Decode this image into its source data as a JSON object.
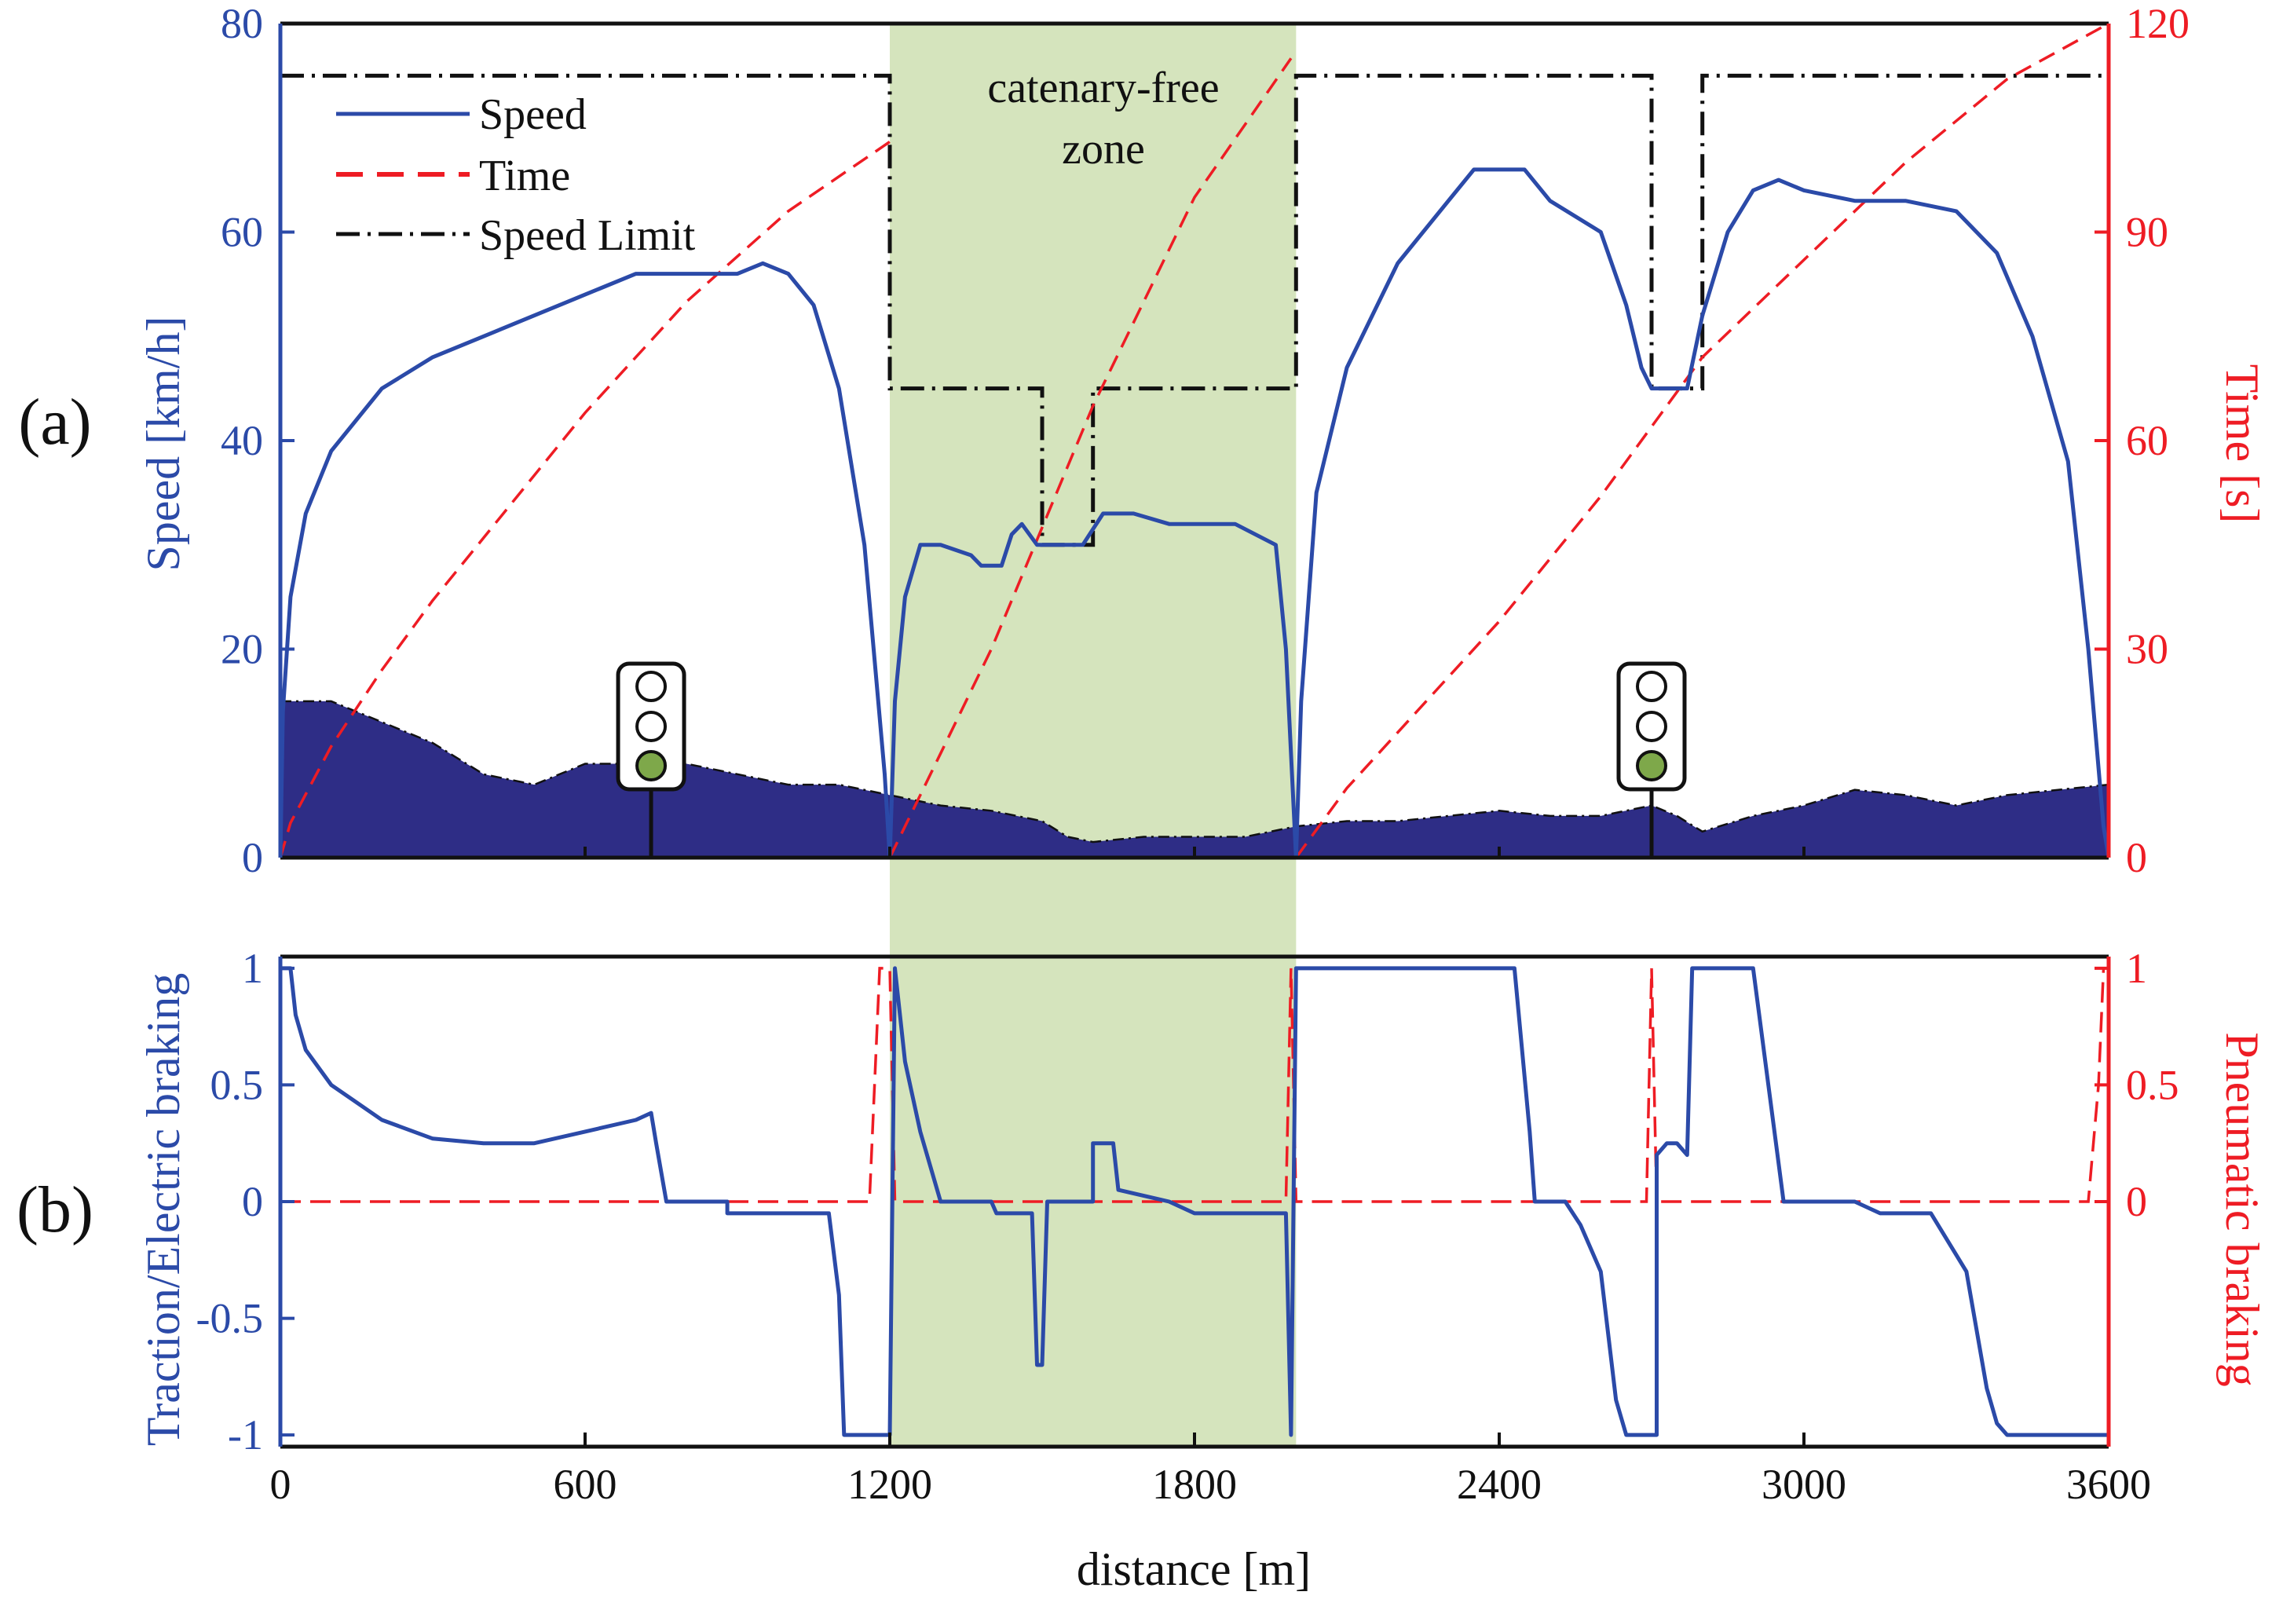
{
  "colors": {
    "speed": "#2b4aa8",
    "time": "#ee1c24",
    "limit": "#111111",
    "altitude": "#2e2d86",
    "zone": "#d5e4bd",
    "axis": "#111111",
    "signal_green": "#7ea84a",
    "left_axis_text": "#2b4aa8",
    "right_axis_text": "#ee1c24"
  },
  "chart_data": [
    {
      "type": "line",
      "panel_label": "(a)",
      "xlim": [
        0,
        3600
      ],
      "ylim_left": [
        0,
        80
      ],
      "ylim_right": [
        0,
        120
      ],
      "yticks_left": [
        "0",
        "20",
        "40",
        "60",
        "80"
      ],
      "yticks_right": [
        "0",
        "30",
        "60",
        "90",
        "120"
      ],
      "ylabel_left": "Speed [km/h]",
      "ylabel_right": "Time [s]",
      "annotation": {
        "line1": "catenary-free",
        "line2": "zone"
      },
      "catenary_free_zone": [
        1200,
        2000
      ],
      "legend": [
        "Speed",
        "Time",
        "Speed Limit"
      ],
      "signals": [
        {
          "x": 730,
          "aspect": "green"
        },
        {
          "x": 2700,
          "aspect": "green"
        }
      ],
      "series": [
        {
          "name": "Speed",
          "axis": "left",
          "points": [
            [
              0,
              0
            ],
            [
              5,
              14
            ],
            [
              20,
              25
            ],
            [
              50,
              33
            ],
            [
              100,
              39
            ],
            [
              200,
              45
            ],
            [
              300,
              48
            ],
            [
              400,
              50
            ],
            [
              500,
              52
            ],
            [
              600,
              54
            ],
            [
              700,
              56
            ],
            [
              800,
              56
            ],
            [
              900,
              56
            ],
            [
              950,
              57
            ],
            [
              1000,
              56
            ],
            [
              1050,
              53
            ],
            [
              1100,
              45
            ],
            [
              1150,
              30
            ],
            [
              1190,
              8
            ],
            [
              1200,
              0
            ],
            [
              1210,
              15
            ],
            [
              1230,
              25
            ],
            [
              1260,
              30
            ],
            [
              1300,
              30
            ],
            [
              1360,
              29
            ],
            [
              1380,
              28
            ],
            [
              1420,
              28
            ],
            [
              1440,
              31
            ],
            [
              1460,
              32
            ],
            [
              1490,
              30
            ],
            [
              1580,
              30
            ],
            [
              1620,
              33
            ],
            [
              1680,
              33
            ],
            [
              1750,
              32
            ],
            [
              1800,
              32
            ],
            [
              1880,
              32
            ],
            [
              1960,
              30
            ],
            [
              1980,
              20
            ],
            [
              2000,
              0
            ],
            [
              2010,
              15
            ],
            [
              2040,
              35
            ],
            [
              2100,
              47
            ],
            [
              2200,
              57
            ],
            [
              2300,
              63
            ],
            [
              2350,
              66
            ],
            [
              2400,
              66
            ],
            [
              2450,
              66
            ],
            [
              2500,
              63
            ],
            [
              2600,
              60
            ],
            [
              2650,
              53
            ],
            [
              2680,
              47
            ],
            [
              2700,
              45
            ],
            [
              2770,
              45
            ],
            [
              2800,
              52
            ],
            [
              2850,
              60
            ],
            [
              2900,
              64
            ],
            [
              2950,
              65
            ],
            [
              3000,
              64
            ],
            [
              3100,
              63
            ],
            [
              3200,
              63
            ],
            [
              3300,
              62
            ],
            [
              3380,
              58
            ],
            [
              3450,
              50
            ],
            [
              3520,
              38
            ],
            [
              3560,
              20
            ],
            [
              3590,
              3
            ],
            [
              3600,
              0
            ]
          ]
        },
        {
          "name": "Time",
          "axis": "right",
          "segments": [
            [
              [
                0,
                0
              ],
              [
                20,
                5
              ],
              [
                100,
                16
              ],
              [
                200,
                27
              ],
              [
                300,
                37
              ],
              [
                400,
                46
              ],
              [
                600,
                64
              ],
              [
                800,
                80
              ],
              [
                1000,
                93
              ],
              [
                1200,
                103
              ]
            ],
            [
              [
                1200,
                0
              ],
              [
                1300,
                15
              ],
              [
                1400,
                30
              ],
              [
                1600,
                65
              ],
              [
                1800,
                95
              ],
              [
                1990,
                115
              ]
            ],
            [
              [
                2000,
                0
              ],
              [
                2100,
                10
              ],
              [
                2200,
                18
              ],
              [
                2400,
                34
              ],
              [
                2600,
                52
              ],
              [
                2800,
                72
              ],
              [
                3000,
                86
              ],
              [
                3200,
                100
              ],
              [
                3400,
                112
              ],
              [
                3600,
                120
              ]
            ]
          ]
        },
        {
          "name": "Speed Limit",
          "axis": "left",
          "points": [
            [
              0,
              75
            ],
            [
              1200,
              75
            ],
            [
              1200,
              45
            ],
            [
              1500,
              45
            ],
            [
              1500,
              30
            ],
            [
              1600,
              30
            ],
            [
              1600,
              45
            ],
            [
              2000,
              45
            ],
            [
              2000,
              75
            ],
            [
              2700,
              75
            ],
            [
              2700,
              45
            ],
            [
              2800,
              45
            ],
            [
              2800,
              75
            ],
            [
              3600,
              75
            ]
          ]
        },
        {
          "name": "Altitude profile",
          "axis": "left",
          "style": "filled",
          "points": [
            [
              0,
              15
            ],
            [
              100,
              15
            ],
            [
              200,
              13
            ],
            [
              300,
              11
            ],
            [
              400,
              8
            ],
            [
              500,
              7
            ],
            [
              600,
              9
            ],
            [
              700,
              9
            ],
            [
              800,
              9
            ],
            [
              900,
              8
            ],
            [
              1000,
              7
            ],
            [
              1100,
              7
            ],
            [
              1200,
              6
            ],
            [
              1300,
              5
            ],
            [
              1400,
              4.5
            ],
            [
              1500,
              3.5
            ],
            [
              1550,
              2
            ],
            [
              1600,
              1.5
            ],
            [
              1700,
              2
            ],
            [
              1800,
              2
            ],
            [
              1900,
              2
            ],
            [
              2000,
              3
            ],
            [
              2100,
              3.5
            ],
            [
              2200,
              3.5
            ],
            [
              2300,
              4
            ],
            [
              2400,
              4.5
            ],
            [
              2500,
              4
            ],
            [
              2600,
              4
            ],
            [
              2700,
              5
            ],
            [
              2750,
              4
            ],
            [
              2800,
              2.5
            ],
            [
              2900,
              4
            ],
            [
              3000,
              5
            ],
            [
              3100,
              6.5
            ],
            [
              3200,
              6
            ],
            [
              3300,
              5
            ],
            [
              3400,
              6
            ],
            [
              3500,
              6.5
            ],
            [
              3600,
              7
            ]
          ]
        }
      ]
    },
    {
      "type": "line",
      "panel_label": "(b)",
      "xlim": [
        0,
        3600
      ],
      "ylim_left": [
        -1.05,
        1.05
      ],
      "ylim_right": [
        -1.05,
        1.05
      ],
      "xticks": [
        "0",
        "600",
        "1200",
        "1800",
        "2400",
        "3000",
        "3600"
      ],
      "yticks_left": [
        "-1",
        "-0.5",
        "0",
        "0.5",
        "1"
      ],
      "yticks_right": [
        "0",
        "0.5",
        "1"
      ],
      "xlabel": "distance [m]",
      "ylabel_left": "Traction/Electric braking",
      "ylabel_right": "Pneumatic braking",
      "series": [
        {
          "name": "Traction/Electric braking",
          "axis": "left",
          "points": [
            [
              0,
              1
            ],
            [
              20,
              1
            ],
            [
              30,
              0.8
            ],
            [
              50,
              0.65
            ],
            [
              100,
              0.5
            ],
            [
              200,
              0.35
            ],
            [
              300,
              0.27
            ],
            [
              400,
              0.25
            ],
            [
              500,
              0.25
            ],
            [
              600,
              0.3
            ],
            [
              700,
              0.35
            ],
            [
              730,
              0.38
            ],
            [
              740,
              0.25
            ],
            [
              760,
              0
            ],
            [
              880,
              0
            ],
            [
              880,
              -0.05
            ],
            [
              1080,
              -0.05
            ],
            [
              1100,
              -0.4
            ],
            [
              1110,
              -1
            ],
            [
              1200,
              -1
            ],
            [
              1210,
              1
            ],
            [
              1230,
              0.6
            ],
            [
              1260,
              0.3
            ],
            [
              1300,
              0
            ],
            [
              1400,
              0
            ],
            [
              1410,
              -0.05
            ],
            [
              1480,
              -0.05
            ],
            [
              1490,
              -0.7
            ],
            [
              1500,
              -0.7
            ],
            [
              1510,
              0
            ],
            [
              1600,
              0
            ],
            [
              1600,
              0.25
            ],
            [
              1640,
              0.25
            ],
            [
              1650,
              0.05
            ],
            [
              1750,
              0
            ],
            [
              1800,
              -0.05
            ],
            [
              1980,
              -0.05
            ],
            [
              1990,
              -1
            ],
            [
              2000,
              1
            ],
            [
              2430,
              1
            ],
            [
              2460,
              0.3
            ],
            [
              2470,
              0
            ],
            [
              2530,
              0
            ],
            [
              2560,
              -0.1
            ],
            [
              2600,
              -0.3
            ],
            [
              2630,
              -0.85
            ],
            [
              2650,
              -1
            ],
            [
              2710,
              -1
            ],
            [
              2710,
              0.2
            ],
            [
              2730,
              0.25
            ],
            [
              2750,
              0.25
            ],
            [
              2770,
              0.2
            ],
            [
              2780,
              1
            ],
            [
              2900,
              1
            ],
            [
              2930,
              0.5
            ],
            [
              2960,
              0
            ],
            [
              3100,
              0
            ],
            [
              3150,
              -0.05
            ],
            [
              3250,
              -0.05
            ],
            [
              3320,
              -0.3
            ],
            [
              3360,
              -0.8
            ],
            [
              3380,
              -0.95
            ],
            [
              3400,
              -1
            ],
            [
              3600,
              -1
            ]
          ]
        },
        {
          "name": "Pneumatic braking",
          "axis": "right",
          "points": [
            [
              0,
              0
            ],
            [
              1160,
              0
            ],
            [
              1180,
              1
            ],
            [
              1200,
              1
            ],
            [
              1210,
              0
            ],
            [
              1980,
              0
            ],
            [
              1990,
              1
            ],
            [
              2000,
              0
            ],
            [
              2690,
              0
            ],
            [
              2700,
              1
            ],
            [
              2710,
              0
            ],
            [
              3560,
              0
            ],
            [
              3580,
              0.5
            ],
            [
              3590,
              1
            ],
            [
              3600,
              1
            ]
          ]
        }
      ]
    }
  ]
}
